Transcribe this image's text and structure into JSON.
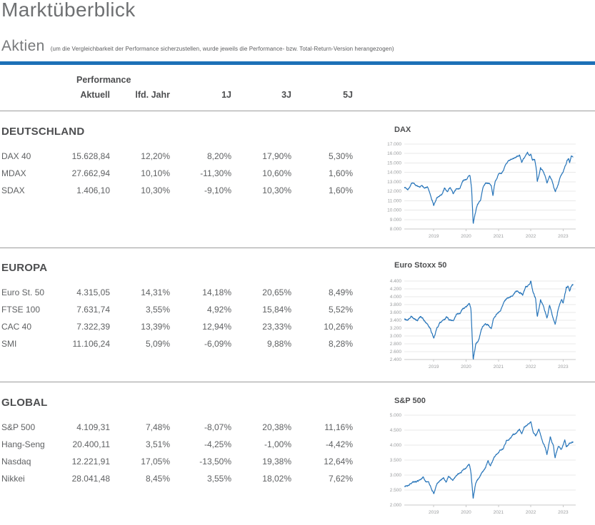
{
  "page": {
    "title": "Marktüberblick"
  },
  "aktien": {
    "heading": "Aktien",
    "note": "(um die Vergleichbarkeit der Performance sicherzustellen, wurde jeweils die Performance- bzw. Total-Return-Version herangezogen)"
  },
  "table": {
    "group_header": "Performance",
    "columns": [
      "Aktuell",
      "lfd. Jahr",
      "1J",
      "3J",
      "5J"
    ]
  },
  "sections": [
    {
      "heading": "DEUTSCHLAND",
      "rows": [
        {
          "label": "DAX 40",
          "aktuell": "15.628,84",
          "lfd": "12,20%",
          "y1": "8,20%",
          "y3": "17,90%",
          "y5": "5,30%"
        },
        {
          "label": "MDAX",
          "aktuell": "27.662,94",
          "lfd": "10,10%",
          "y1": "-11,30%",
          "y3": "10,60%",
          "y5": "1,60%"
        },
        {
          "label": "SDAX",
          "aktuell": "1.406,10",
          "lfd": "10,30%",
          "y1": "-9,10%",
          "y3": "10,30%",
          "y5": "1,60%"
        }
      ]
    },
    {
      "heading": "EUROPA",
      "rows": [
        {
          "label": "Euro St. 50",
          "aktuell": "4.315,05",
          "lfd": "14,31%",
          "y1": "14,18%",
          "y3": "20,65%",
          "y5": "8,49%"
        },
        {
          "label": "FTSE 100",
          "aktuell": "7.631,74",
          "lfd": "3,55%",
          "y1": "4,92%",
          "y3": "15,84%",
          "y5": "5,52%"
        },
        {
          "label": "CAC 40",
          "aktuell": "7.322,39",
          "lfd": "13,39%",
          "y1": "12,94%",
          "y3": "23,33%",
          "y5": "10,26%"
        },
        {
          "label": "SMI",
          "aktuell": "11.106,24",
          "lfd": "5,09%",
          "y1": "-6,09%",
          "y3": "9,88%",
          "y5": "8,28%"
        }
      ]
    },
    {
      "heading": "GLOBAL",
      "rows": [
        {
          "label": "S&P 500",
          "aktuell": "4.109,31",
          "lfd": "7,48%",
          "y1": "-8,07%",
          "y3": "20,38%",
          "y5": "11,16%"
        },
        {
          "label": "Hang-Seng",
          "aktuell": "20.400,11",
          "lfd": "3,51%",
          "y1": "-4,25%",
          "y3": "-1,00%",
          "y5": "-4,42%"
        },
        {
          "label": "Nasdaq",
          "aktuell": "12.221,91",
          "lfd": "17,05%",
          "y1": "-13,50%",
          "y3": "19,38%",
          "y5": "12,64%"
        },
        {
          "label": "Nikkei",
          "aktuell": "28.041,48",
          "lfd": "8,45%",
          "y1": "3,55%",
          "y3": "18,02%",
          "y5": "7,62%"
        }
      ]
    }
  ],
  "colors": {
    "accent_blue": "#1d70b7",
    "line_blue": "#2674b9",
    "grid_gray": "#e8e8e8",
    "axis_gray": "#c8c8c8",
    "tick_label_gray": "#9a9c9e"
  },
  "chart_data": [
    {
      "type": "line",
      "title": "DAX",
      "legend": false,
      "xlim": [
        2018.09,
        2023.3
      ],
      "x_ticks": [
        2019,
        2020,
        2021,
        2022,
        2023
      ],
      "ylim": [
        8000,
        17000
      ],
      "y_ticks": [
        {
          "v": 17000,
          "label": "17.000"
        },
        {
          "v": 16000,
          "label": "16.000"
        },
        {
          "v": 15000,
          "label": "15.000"
        },
        {
          "v": 14000,
          "label": "14.000"
        },
        {
          "v": 13000,
          "label": "13.000"
        },
        {
          "v": 12000,
          "label": "12.000"
        },
        {
          "v": 11000,
          "label": "11.000"
        },
        {
          "v": 10000,
          "label": "10.000"
        },
        {
          "v": 9000,
          "label": "9.000"
        },
        {
          "v": 8000,
          "label": "8.000"
        }
      ],
      "series_name": "DAX",
      "series": [
        [
          2018.1,
          12450
        ],
        [
          2018.2,
          12180
        ],
        [
          2018.35,
          12950
        ],
        [
          2018.45,
          12650
        ],
        [
          2018.55,
          12350
        ],
        [
          2018.65,
          12600
        ],
        [
          2018.72,
          12250
        ],
        [
          2018.8,
          12450
        ],
        [
          2018.9,
          11600
        ],
        [
          2018.98,
          10800
        ],
        [
          2019.0,
          10480
        ],
        [
          2019.1,
          11300
        ],
        [
          2019.25,
          11600
        ],
        [
          2019.33,
          12300
        ],
        [
          2019.42,
          11900
        ],
        [
          2019.5,
          12400
        ],
        [
          2019.6,
          11750
        ],
        [
          2019.7,
          12300
        ],
        [
          2019.8,
          12250
        ],
        [
          2019.9,
          13150
        ],
        [
          2020.0,
          13250
        ],
        [
          2020.07,
          13500
        ],
        [
          2020.12,
          13700
        ],
        [
          2020.17,
          12300
        ],
        [
          2020.22,
          8550
        ],
        [
          2020.28,
          9600
        ],
        [
          2020.35,
          10600
        ],
        [
          2020.45,
          11100
        ],
        [
          2020.52,
          12300
        ],
        [
          2020.6,
          12850
        ],
        [
          2020.7,
          12900
        ],
        [
          2020.78,
          12550
        ],
        [
          2020.83,
          11600
        ],
        [
          2020.9,
          13100
        ],
        [
          2021.0,
          13750
        ],
        [
          2021.1,
          13900
        ],
        [
          2021.2,
          14600
        ],
        [
          2021.3,
          15150
        ],
        [
          2021.45,
          15450
        ],
        [
          2021.55,
          15650
        ],
        [
          2021.65,
          15850
        ],
        [
          2021.72,
          15100
        ],
        [
          2021.8,
          15550
        ],
        [
          2021.9,
          16100
        ],
        [
          2021.95,
          15750
        ],
        [
          2022.0,
          16000
        ],
        [
          2022.05,
          15200
        ],
        [
          2022.12,
          15450
        ],
        [
          2022.18,
          14100
        ],
        [
          2022.2,
          12950
        ],
        [
          2022.3,
          14450
        ],
        [
          2022.4,
          14050
        ],
        [
          2022.5,
          12900
        ],
        [
          2022.58,
          13700
        ],
        [
          2022.65,
          13150
        ],
        [
          2022.72,
          12250
        ],
        [
          2022.76,
          11950
        ],
        [
          2022.85,
          12750
        ],
        [
          2022.92,
          13650
        ],
        [
          2023.0,
          14050
        ],
        [
          2023.05,
          14550
        ],
        [
          2023.12,
          15250
        ],
        [
          2023.17,
          15450
        ],
        [
          2023.2,
          14950
        ],
        [
          2023.25,
          15650
        ],
        [
          2023.3,
          15629
        ]
      ],
      "noise": 90,
      "seed": 7,
      "color": "#2674b9"
    },
    {
      "type": "line",
      "title": "Euro Stoxx 50",
      "legend": false,
      "xlim": [
        2018.09,
        2023.3
      ],
      "x_ticks": [
        2019,
        2020,
        2021,
        2022,
        2023
      ],
      "ylim": [
        2400,
        4400
      ],
      "y_ticks": [
        {
          "v": 4400,
          "label": "4.400"
        },
        {
          "v": 4200,
          "label": "4.200"
        },
        {
          "v": 4000,
          "label": "4.000"
        },
        {
          "v": 3800,
          "label": "3.800"
        },
        {
          "v": 3600,
          "label": "3.600"
        },
        {
          "v": 3400,
          "label": "3.400"
        },
        {
          "v": 3200,
          "label": "3.200"
        },
        {
          "v": 3000,
          "label": "3.000"
        },
        {
          "v": 2800,
          "label": "2.800"
        },
        {
          "v": 2600,
          "label": "2.600"
        },
        {
          "v": 2400,
          "label": "2.400"
        }
      ],
      "series_name": "Euro Stoxx 50",
      "series": [
        [
          2018.1,
          3440
        ],
        [
          2018.2,
          3390
        ],
        [
          2018.3,
          3520
        ],
        [
          2018.4,
          3450
        ],
        [
          2018.5,
          3410
        ],
        [
          2018.6,
          3500
        ],
        [
          2018.7,
          3400
        ],
        [
          2018.8,
          3320
        ],
        [
          2018.9,
          3180
        ],
        [
          2019.0,
          2960
        ],
        [
          2019.1,
          3200
        ],
        [
          2019.2,
          3350
        ],
        [
          2019.3,
          3400
        ],
        [
          2019.4,
          3480
        ],
        [
          2019.5,
          3420
        ],
        [
          2019.6,
          3380
        ],
        [
          2019.7,
          3530
        ],
        [
          2019.8,
          3580
        ],
        [
          2019.9,
          3700
        ],
        [
          2020.0,
          3750
        ],
        [
          2020.1,
          3830
        ],
        [
          2020.15,
          3690
        ],
        [
          2020.22,
          2400
        ],
        [
          2020.3,
          2790
        ],
        [
          2020.4,
          2920
        ],
        [
          2020.5,
          3230
        ],
        [
          2020.6,
          3300
        ],
        [
          2020.7,
          3280
        ],
        [
          2020.78,
          3170
        ],
        [
          2020.85,
          3450
        ],
        [
          2020.95,
          3550
        ],
        [
          2021.05,
          3640
        ],
        [
          2021.15,
          3810
        ],
        [
          2021.25,
          3950
        ],
        [
          2021.35,
          4000
        ],
        [
          2021.45,
          4060
        ],
        [
          2021.55,
          4150
        ],
        [
          2021.65,
          4120
        ],
        [
          2021.75,
          4050
        ],
        [
          2021.85,
          4250
        ],
        [
          2021.95,
          4300
        ],
        [
          2022.0,
          4390
        ],
        [
          2022.08,
          4100
        ],
        [
          2022.15,
          3950
        ],
        [
          2022.2,
          3480
        ],
        [
          2022.3,
          3920
        ],
        [
          2022.4,
          3750
        ],
        [
          2022.5,
          3450
        ],
        [
          2022.58,
          3770
        ],
        [
          2022.68,
          3480
        ],
        [
          2022.75,
          3290
        ],
        [
          2022.85,
          3700
        ],
        [
          2022.95,
          3920
        ],
        [
          2023.0,
          3850
        ],
        [
          2023.1,
          4230
        ],
        [
          2023.15,
          4270
        ],
        [
          2023.2,
          4150
        ],
        [
          2023.28,
          4330
        ],
        [
          2023.3,
          4315
        ]
      ],
      "noise": 26,
      "seed": 12,
      "color": "#2674b9"
    },
    {
      "type": "line",
      "title": "S&P 500",
      "legend": false,
      "xlim": [
        2018.09,
        2023.3
      ],
      "x_ticks": [
        2019,
        2020,
        2021,
        2022,
        2023
      ],
      "ylim": [
        2000,
        5000
      ],
      "y_ticks": [
        {
          "v": 5000,
          "label": "5.000"
        },
        {
          "v": 4500,
          "label": "4.500"
        },
        {
          "v": 4000,
          "label": "4.000"
        },
        {
          "v": 3500,
          "label": "3.500"
        },
        {
          "v": 3000,
          "label": "3.000"
        },
        {
          "v": 2500,
          "label": "2.500"
        },
        {
          "v": 2000,
          "label": "2.000"
        }
      ],
      "series_name": "S&P 500",
      "series": [
        [
          2018.1,
          2620
        ],
        [
          2018.2,
          2650
        ],
        [
          2018.3,
          2720
        ],
        [
          2018.4,
          2780
        ],
        [
          2018.5,
          2800
        ],
        [
          2018.6,
          2870
        ],
        [
          2018.68,
          2930
        ],
        [
          2018.75,
          2780
        ],
        [
          2018.85,
          2750
        ],
        [
          2018.95,
          2500
        ],
        [
          2019.0,
          2380
        ],
        [
          2019.1,
          2700
        ],
        [
          2019.2,
          2800
        ],
        [
          2019.3,
          2900
        ],
        [
          2019.38,
          2750
        ],
        [
          2019.45,
          2950
        ],
        [
          2019.55,
          2900
        ],
        [
          2019.6,
          2850
        ],
        [
          2019.7,
          2980
        ],
        [
          2019.8,
          3050
        ],
        [
          2019.9,
          3180
        ],
        [
          2020.0,
          3250
        ],
        [
          2020.1,
          3380
        ],
        [
          2020.15,
          3100
        ],
        [
          2020.22,
          2230
        ],
        [
          2020.3,
          2750
        ],
        [
          2020.4,
          2900
        ],
        [
          2020.5,
          3100
        ],
        [
          2020.6,
          3230
        ],
        [
          2020.68,
          3500
        ],
        [
          2020.75,
          3300
        ],
        [
          2020.85,
          3550
        ],
        [
          2020.95,
          3700
        ],
        [
          2021.05,
          3820
        ],
        [
          2021.15,
          3900
        ],
        [
          2021.25,
          4150
        ],
        [
          2021.35,
          4200
        ],
        [
          2021.45,
          4350
        ],
        [
          2021.55,
          4400
        ],
        [
          2021.65,
          4520
        ],
        [
          2021.72,
          4350
        ],
        [
          2021.8,
          4600
        ],
        [
          2021.9,
          4700
        ],
        [
          2022.0,
          4790
        ],
        [
          2022.08,
          4400
        ],
        [
          2022.15,
          4300
        ],
        [
          2022.25,
          4550
        ],
        [
          2022.35,
          4150
        ],
        [
          2022.45,
          3900
        ],
        [
          2022.5,
          3680
        ],
        [
          2022.6,
          4280
        ],
        [
          2022.7,
          3950
        ],
        [
          2022.75,
          3590
        ],
        [
          2022.85,
          3950
        ],
        [
          2022.95,
          3850
        ],
        [
          2023.05,
          4150
        ],
        [
          2023.1,
          3950
        ],
        [
          2023.2,
          4050
        ],
        [
          2023.3,
          4109
        ]
      ],
      "noise": 30,
      "seed": 21,
      "color": "#2674b9"
    }
  ]
}
